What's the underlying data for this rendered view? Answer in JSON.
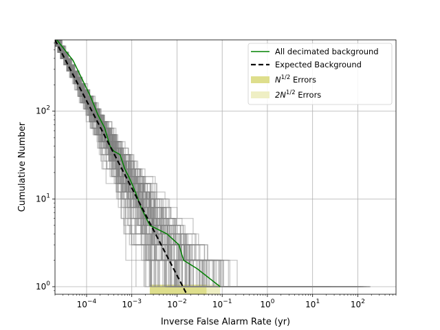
{
  "chart_data": {
    "type": "line",
    "xlabel": "Inverse False Alarm Rate (yr)",
    "ylabel": "Cumulative Number",
    "x_scale": "log",
    "y_scale": "log",
    "xlim": [
      2e-05,
      700
    ],
    "ylim": [
      0.82,
      650
    ],
    "grid": true,
    "legend_position": "top-right",
    "x_ticks": [
      {
        "value": 0.0001,
        "base": "10",
        "exp": "−4"
      },
      {
        "value": 0.001,
        "base": "10",
        "exp": "−3"
      },
      {
        "value": 0.01,
        "base": "10",
        "exp": "−2"
      },
      {
        "value": 0.1,
        "base": "10",
        "exp": "−1"
      },
      {
        "value": 1,
        "base": "10",
        "exp": "0"
      },
      {
        "value": 10,
        "base": "10",
        "exp": "1"
      },
      {
        "value": 100,
        "base": "10",
        "exp": "2"
      }
    ],
    "y_ticks": [
      {
        "value": 1,
        "base": "10",
        "exp": "0"
      },
      {
        "value": 10,
        "base": "10",
        "exp": "1"
      },
      {
        "value": 100,
        "base": "10",
        "exp": "2"
      }
    ],
    "series": [
      {
        "name": "All decimated background",
        "color": "#008000",
        "style": "solid",
        "points": [
          [
            2.2e-05,
            650
          ],
          [
            5e-05,
            380
          ],
          [
            0.00012,
            150
          ],
          [
            0.00018,
            90
          ],
          [
            0.00025,
            65
          ],
          [
            0.00033,
            40
          ],
          [
            0.0004,
            35
          ],
          [
            0.00055,
            32
          ],
          [
            0.0007,
            22
          ],
          [
            0.0009,
            17
          ],
          [
            0.0012,
            12
          ],
          [
            0.0016,
            8
          ],
          [
            0.0025,
            5
          ],
          [
            0.006,
            4
          ],
          [
            0.011,
            3
          ],
          [
            0.014,
            2
          ],
          [
            0.028,
            1.6
          ],
          [
            0.09,
            1
          ]
        ]
      },
      {
        "name": "Expected Background",
        "color": "#000000",
        "style": "dashed",
        "points": [
          [
            2e-05,
            650
          ],
          [
            0.0165,
            0.82
          ]
        ]
      }
    ],
    "bands": [
      {
        "name": "N1/2 Errors",
        "color": "#dede8c",
        "x_range": [
          0.0025,
          0.045
        ]
      },
      {
        "name": "2N1/2 Errors",
        "color": "#efefc4",
        "x_range": [
          0.0025,
          0.09
        ]
      }
    ],
    "background_curves": {
      "name": "decimated backgrounds",
      "color": "#808080",
      "count": 110,
      "tail_extent_max": 220
    },
    "legend": [
      {
        "label": "All decimated background",
        "kind": "line",
        "color": "#008000"
      },
      {
        "label": "Expected Background",
        "kind": "dashed",
        "color": "#000000"
      },
      {
        "label_prefix": "N",
        "label_sup": "1/2",
        "label_suffix": " Errors",
        "kind": "patch",
        "color": "#dede8c"
      },
      {
        "label_prefix": "2N",
        "label_sup": "1/2",
        "label_suffix": " Errors",
        "kind": "patch",
        "color": "#efefc4"
      }
    ]
  }
}
